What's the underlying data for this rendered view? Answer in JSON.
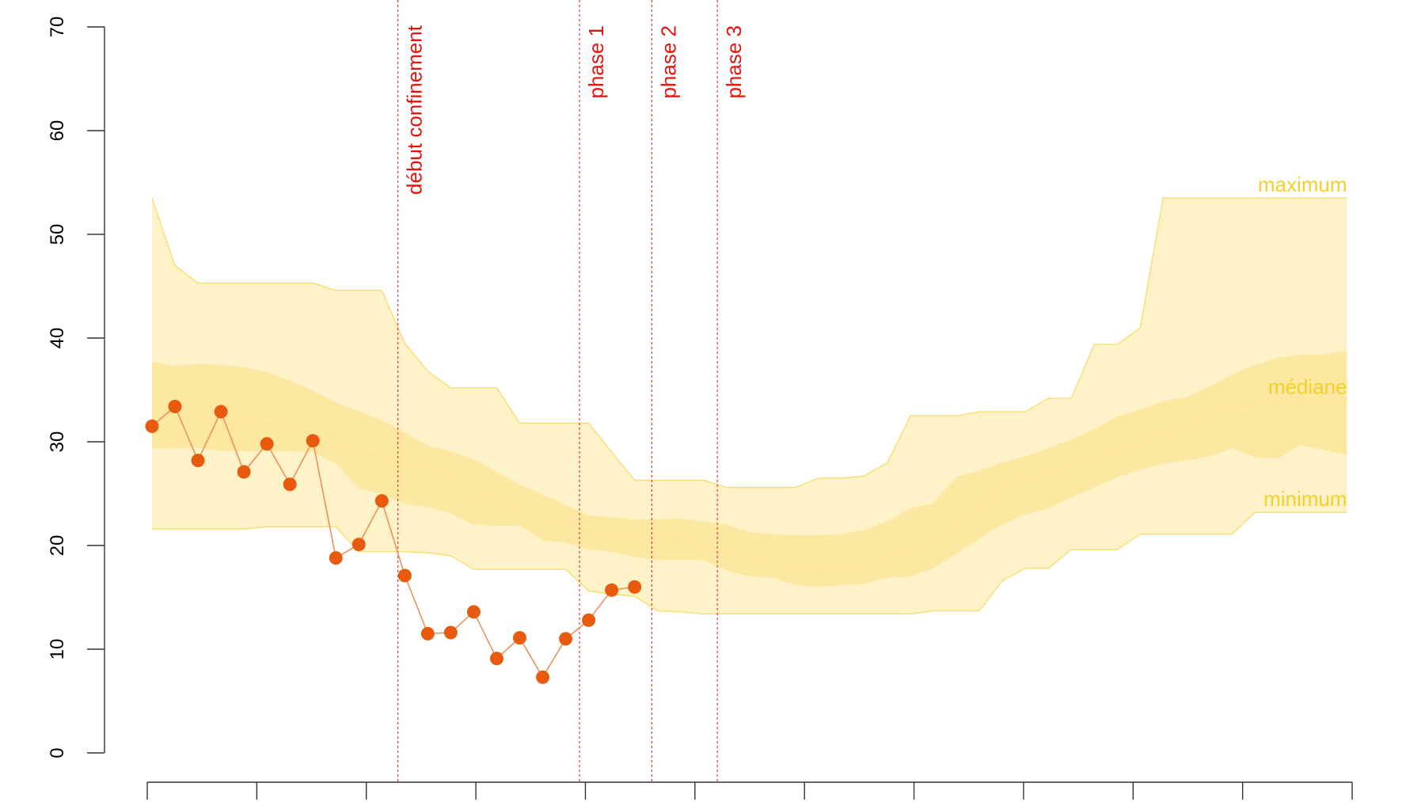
{
  "chart_data": {
    "type": "line",
    "ylim": [
      0,
      70
    ],
    "y_ticks": [
      "0",
      "10",
      "20",
      "30",
      "40",
      "50",
      "60",
      "70"
    ],
    "x_ticks_count": 12,
    "grid": false,
    "series": [
      {
        "name": "",
        "role": "observed",
        "x": [
          1,
          2,
          3,
          4,
          5,
          6,
          7,
          8,
          9,
          10,
          11,
          12,
          13,
          14,
          15,
          16,
          17,
          18,
          19,
          20,
          21,
          22
        ],
        "values": [
          31.5,
          33.4,
          28.2,
          32.9,
          27.1,
          29.8,
          25.9,
          30.1,
          18.8,
          20.1,
          24.3,
          17.1,
          11.5,
          11.6,
          13.6,
          9.1,
          11.1,
          7.3,
          11.0,
          12.8,
          15.7,
          16.0
        ]
      }
    ],
    "bands": {
      "x": [
        1,
        2,
        3,
        4,
        5,
        6,
        7,
        8,
        9,
        10,
        11,
        12,
        13,
        14,
        15,
        16,
        17,
        18,
        19,
        20,
        21,
        22,
        23,
        24,
        25,
        26,
        27,
        28,
        29,
        30,
        31,
        32,
        33,
        34,
        35,
        36,
        37,
        38,
        39,
        40,
        41,
        42,
        43,
        44,
        45,
        46,
        47,
        48,
        49,
        50,
        51,
        52,
        53
      ],
      "maximum": [
        53.5,
        47.0,
        45.3,
        45.3,
        45.3,
        45.3,
        45.3,
        45.3,
        44.6,
        44.6,
        44.6,
        39.5,
        36.8,
        35.2,
        35.2,
        35.2,
        31.8,
        31.8,
        31.8,
        31.8,
        29.0,
        26.3,
        26.3,
        26.3,
        26.3,
        25.6,
        25.6,
        25.6,
        25.6,
        26.5,
        26.5,
        26.7,
        28.0,
        32.5,
        32.5,
        32.5,
        32.9,
        32.9,
        32.9,
        34.2,
        34.2,
        39.4,
        39.4,
        41.0,
        53.5,
        53.5,
        53.5,
        53.5,
        53.5,
        53.5,
        53.5,
        53.5,
        53.5
      ],
      "upper_quartile": [
        37.7,
        37.3,
        37.5,
        37.4,
        37.2,
        36.7,
        35.9,
        34.9,
        33.8,
        32.9,
        32.1,
        30.9,
        29.6,
        29.1,
        28.3,
        27.1,
        25.9,
        24.9,
        23.9,
        22.9,
        22.7,
        22.5,
        22.5,
        22.6,
        22.3,
        22.0,
        21.3,
        21.1,
        21.0,
        21.0,
        21.1,
        21.5,
        22.3,
        23.6,
        24.1,
        26.6,
        27.2,
        28.0,
        28.6,
        29.4,
        30.2,
        31.2,
        32.4,
        33.1,
        33.9,
        34.3,
        35.3,
        36.5,
        37.4,
        38.1,
        38.4,
        38.4,
        38.8
      ],
      "median": [
        33.2,
        32.9,
        32.4,
        32.2,
        32.0,
        31.8,
        31.5,
        30.6,
        29.8,
        28.9,
        28.5,
        27.7,
        27.5,
        26.4,
        24.9,
        24.1,
        23.4,
        22.3,
        21.9,
        21.3,
        21.0,
        20.8,
        21.0,
        20.7,
        19.9,
        19.3,
        18.9,
        18.3,
        18.1,
        17.7,
        17.9,
        18.0,
        18.8,
        19.4,
        20.6,
        21.9,
        23.4,
        25.8,
        26.6,
        27.0,
        27.8,
        28.6,
        28.8,
        29.9,
        30.6,
        31.5,
        32.8,
        33.3,
        33.5,
        33.6,
        33.8,
        33.9,
        34.0
      ],
      "lower_quartile": [
        29.4,
        29.4,
        29.4,
        29.1,
        29.1,
        29.1,
        29.1,
        29.0,
        27.9,
        25.5,
        25.0,
        24.0,
        23.7,
        23.1,
        22.0,
        21.9,
        21.9,
        20.5,
        20.3,
        19.6,
        19.4,
        18.9,
        18.6,
        18.6,
        18.6,
        17.6,
        17.0,
        16.9,
        16.2,
        16.0,
        16.2,
        16.3,
        16.9,
        17.0,
        17.8,
        19.2,
        20.7,
        22.0,
        23.0,
        23.6,
        24.6,
        25.6,
        26.6,
        27.3,
        27.9,
        28.2,
        28.6,
        29.4,
        28.5,
        28.4,
        29.7,
        29.2,
        28.7
      ],
      "minimum": [
        21.6,
        21.6,
        21.6,
        21.6,
        21.6,
        21.8,
        21.8,
        21.8,
        21.8,
        19.4,
        19.4,
        19.4,
        19.3,
        19.0,
        17.7,
        17.7,
        17.7,
        17.7,
        17.7,
        15.6,
        15.3,
        15.1,
        13.7,
        13.6,
        13.4,
        13.4,
        13.4,
        13.4,
        13.4,
        13.4,
        13.4,
        13.4,
        13.4,
        13.4,
        13.7,
        13.7,
        13.7,
        16.6,
        17.8,
        17.8,
        19.6,
        19.6,
        19.6,
        21.1,
        21.1,
        21.1,
        21.1,
        21.1,
        23.2,
        23.2,
        23.2,
        23.2,
        23.2
      ]
    },
    "band_labels": {
      "maximum": "maximum",
      "median": "médiane",
      "minimum": "minimum"
    },
    "events": [
      {
        "x": 11.7,
        "label": "début confinement"
      },
      {
        "x": 19.6,
        "label": "phase 1"
      },
      {
        "x": 22.75,
        "label": "phase 2"
      },
      {
        "x": 25.6,
        "label": "phase 3"
      }
    ],
    "colors": {
      "outer_band": "#fdf2c8",
      "outer_band_edge": "#f7dc6a",
      "inner_band": "#fde8a2",
      "median_line": "#fbe39a",
      "observed": "#e85a0e",
      "observed_line": "#ed8c52",
      "event_line": "#ee3030",
      "event_text": "#e8120c",
      "band_text": "#f5cf2a",
      "axis": "#333333"
    }
  }
}
